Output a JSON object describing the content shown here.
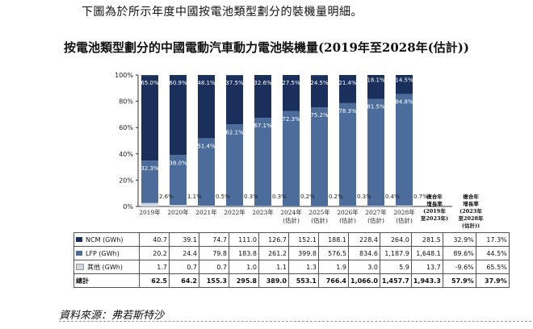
{
  "intro_text": "下圖為於所示年度中國按電池類型劃分的裝機量明細。",
  "source_text": "資料來源：弗若斯特沙",
  "colors": {
    "ncm": "#1b2f5c",
    "lfp": "#4c6d9b",
    "other": "#cfd6e0"
  },
  "chart_data": {
    "type": "bar",
    "stacked": true,
    "title": "按電池類型劃分的中國電動汽車動力電池裝機量(2019年至2028年(估計))",
    "categories": [
      "2019年",
      "2020年",
      "2021年",
      "2022年",
      "2023年",
      "2024年\n(估計)",
      "2025年\n(估計)",
      "2026年\n(估計)",
      "2027年\n(估計)",
      "2028年\n(估計)"
    ],
    "ylim": [
      0,
      100
    ],
    "yticks": [
      "0%",
      "20%",
      "40%",
      "60%",
      "80%",
      "100%"
    ],
    "series": [
      {
        "name": "其他 (GWh)",
        "labels": [
          "2.6%",
          "1.1%",
          "0.5%",
          "0.3%",
          "0.3%",
          "0.2%",
          "0.2%",
          "0.3%",
          "0.4%",
          "0.7%"
        ],
        "values": [
          2.6,
          1.1,
          0.5,
          0.3,
          0.3,
          0.2,
          0.2,
          0.3,
          0.4,
          0.7
        ]
      },
      {
        "name": "LFP (GWh)",
        "labels": [
          "32.3%",
          "38.0%",
          "51.4%",
          "62.1%",
          "67.1%",
          "72.3%",
          "75.2%",
          "78.3%",
          "81.5%",
          "84.8%"
        ],
        "values": [
          32.3,
          38.0,
          51.4,
          62.1,
          67.1,
          72.3,
          75.2,
          78.3,
          81.5,
          84.8
        ]
      },
      {
        "name": "NCM (GWh)",
        "labels": [
          "65.0%",
          "60.9%",
          "48.1%",
          "37.5%",
          "32.6%",
          "27.5%",
          "24.5%",
          "21.4%",
          "18.1%",
          "14.5%"
        ],
        "values": [
          65.0,
          60.9,
          48.1,
          37.5,
          32.6,
          27.5,
          24.5,
          21.4,
          18.1,
          14.5
        ]
      }
    ],
    "cagr_headers": [
      "複合年\n增長率\n(2019年\n至2023年)",
      "複合年\n增長率\n(2023年\n至2028年\n(估計))"
    ],
    "table": {
      "rows": [
        {
          "label": "NCM (GWh)",
          "key": "ncm",
          "values": [
            "40.7",
            "39.1",
            "74.7",
            "111.0",
            "126.7",
            "152.1",
            "188.1",
            "228.4",
            "264.0",
            "281.5"
          ],
          "cagr": [
            "32.9%",
            "17.3%"
          ]
        },
        {
          "label": "LFP (GWh)",
          "key": "lfp",
          "values": [
            "20.2",
            "24.4",
            "79.8",
            "183.8",
            "261.2",
            "399.8",
            "576.5",
            "834.6",
            "1,187.9",
            "1,648.1"
          ],
          "cagr": [
            "89.6%",
            "44.5%"
          ]
        },
        {
          "label": "其他 (GWh)",
          "key": "other",
          "values": [
            "1.7",
            "0.7",
            "0.7",
            "1.0",
            "1.1",
            "1.3",
            "1.9",
            "3.0",
            "5.9",
            "13.7"
          ],
          "cagr": [
            "-9.6%",
            "65.5%"
          ]
        },
        {
          "label": "總計",
          "key": "total",
          "values": [
            "62.5",
            "64.2",
            "155.3",
            "295.8",
            "389.0",
            "553.1",
            "766.4",
            "1,066.0",
            "1,457.7",
            "1,943.3"
          ],
          "cagr": [
            "57.9%",
            "37.9%"
          ]
        }
      ]
    }
  }
}
